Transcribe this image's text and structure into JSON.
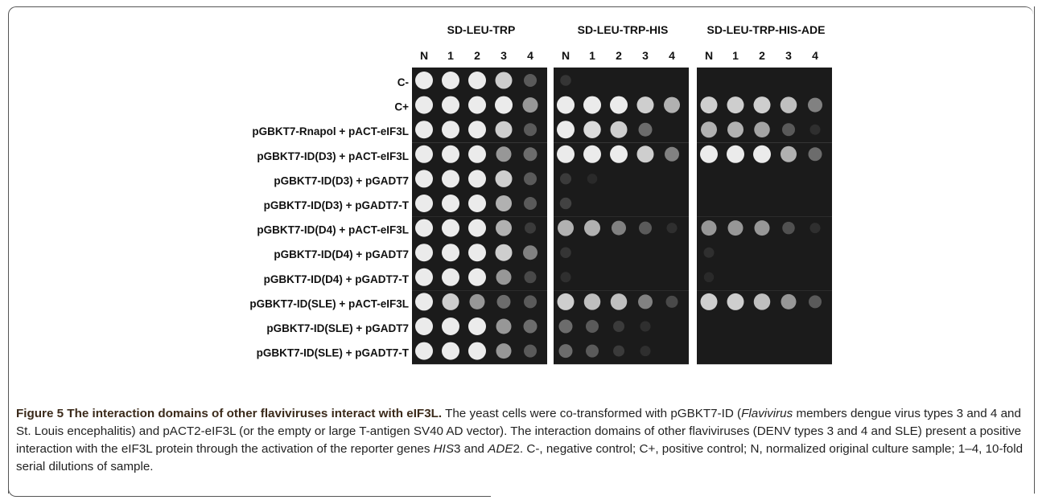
{
  "panels": [
    "SD-LEU-TRP",
    "SD-LEU-TRP-HIS",
    "SD-LEU-TRP-HIS-ADE"
  ],
  "columns": [
    "N",
    "1",
    "2",
    "3",
    "4"
  ],
  "rows": [
    "C-",
    "C+",
    "pGBKT7-Rnapol + pACT-eIF3L",
    "pGBKT7-ID(D3) + pACT-eIF3L",
    "pGBKT7-ID(D3) + pGADT7",
    "pGBKT7-ID(D3) + pGADT7-T",
    "pGBKT7-ID(D4) + pACT-eIF3L",
    "pGBKT7-ID(D4) + pGADT7",
    "pGBKT7-ID(D4) + pGADT7-T",
    "pGBKT7-ID(SLE) + pACT-eIF3L",
    "pGBKT7-ID(SLE) + pGADT7",
    "pGBKT7-ID(SLE) + pGADT7-T"
  ],
  "growth": [
    [
      [
        1,
        1,
        1,
        0.9,
        0.4
      ],
      [
        0.15,
        0,
        0,
        0,
        0
      ],
      [
        0,
        0,
        0,
        0,
        0
      ]
    ],
    [
      [
        1,
        1,
        1,
        1,
        0.7
      ],
      [
        1,
        1,
        1,
        0.9,
        0.8
      ],
      [
        0.9,
        0.9,
        0.9,
        0.85,
        0.6
      ]
    ],
    [
      [
        1,
        1,
        1,
        0.9,
        0.4
      ],
      [
        1,
        0.95,
        0.9,
        0.5,
        0
      ],
      [
        0.8,
        0.8,
        0.75,
        0.4,
        0.1
      ]
    ],
    [
      [
        1,
        1,
        1,
        0.7,
        0.5
      ],
      [
        1,
        1,
        1,
        0.9,
        0.6
      ],
      [
        1,
        1,
        1,
        0.8,
        0.5
      ]
    ],
    [
      [
        1,
        1,
        1,
        0.9,
        0.4
      ],
      [
        0.2,
        0.05,
        0,
        0,
        0
      ],
      [
        0,
        0,
        0,
        0,
        0
      ]
    ],
    [
      [
        1,
        1,
        1,
        0.8,
        0.4
      ],
      [
        0.25,
        0,
        0,
        0,
        0
      ],
      [
        0,
        0,
        0,
        0,
        0
      ]
    ],
    [
      [
        1,
        1,
        1,
        0.8,
        0.2
      ],
      [
        0.8,
        0.8,
        0.6,
        0.4,
        0.1
      ],
      [
        0.7,
        0.7,
        0.7,
        0.35,
        0.1
      ]
    ],
    [
      [
        1,
        1,
        1,
        0.9,
        0.6
      ],
      [
        0.15,
        0,
        0,
        0,
        0
      ],
      [
        0.1,
        0,
        0,
        0,
        0
      ]
    ],
    [
      [
        1,
        1,
        1,
        0.7,
        0.3
      ],
      [
        0.1,
        0,
        0,
        0,
        0
      ],
      [
        0.05,
        0,
        0,
        0,
        0
      ]
    ],
    [
      [
        1,
        0.9,
        0.7,
        0.5,
        0.4
      ],
      [
        0.9,
        0.85,
        0.85,
        0.6,
        0.3
      ],
      [
        0.9,
        0.9,
        0.85,
        0.7,
        0.4
      ]
    ],
    [
      [
        1,
        1,
        1,
        0.7,
        0.5
      ],
      [
        0.5,
        0.4,
        0.2,
        0.1,
        0
      ],
      [
        0,
        0,
        0,
        0,
        0
      ]
    ],
    [
      [
        1,
        1,
        1,
        0.7,
        0.4
      ],
      [
        0.5,
        0.4,
        0.2,
        0.1,
        0
      ],
      [
        0,
        0,
        0,
        0,
        0
      ]
    ]
  ],
  "caption": {
    "title": "Figure 5 The interaction domains of other flaviviruses interact with eIF3L.",
    "t1": " The yeast cells were co-transformed with pGBKT7-ID (",
    "italic1": "Flavivirus",
    "t2": " members dengue virus types 3 and 4 and St. Louis encephalitis) and pACT2-eIF3L (or the empty or large T-antigen SV40 AD vector). The interaction domains of other flaviviruses (DENV types 3 and 4 and SLE) present a positive interaction with the eIF3L protein through the activation of the reporter genes ",
    "italic2": "HIS",
    "t3": "3 and ",
    "italic3": "ADE",
    "t4": "2. C-, negative control; C+, positive control; N, normalized original culture sample; 1–4, 10-fold serial dilutions of sample."
  },
  "colors": {
    "plate_dark": "#1b1b1b",
    "colony": "#e8e8e8",
    "caption_title": "#3b2a1a"
  }
}
